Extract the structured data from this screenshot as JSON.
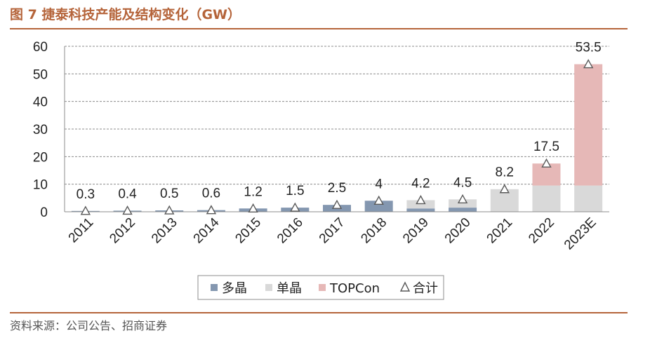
{
  "header": {
    "title": "图 7 捷泰科技产能及结构变化（GW）"
  },
  "footer": {
    "source": "资料来源：公司公告、招商证券"
  },
  "colors": {
    "duojing": "#8497b0",
    "danjing": "#d9d9d9",
    "topcon": "#e6b8b7",
    "brand": "#b5643a"
  },
  "chart_data": {
    "type": "bar",
    "stacked": true,
    "categories": [
      "2011",
      "2012",
      "2013",
      "2014",
      "2015",
      "2016",
      "2017",
      "2018",
      "2019",
      "2020",
      "2021",
      "2022",
      "2023E"
    ],
    "ylim": [
      0,
      60
    ],
    "yticks": [
      "0",
      "10",
      "20",
      "30",
      "40",
      "50",
      "60"
    ],
    "grid": true,
    "legend_position": "bottom",
    "series": [
      {
        "name": "多晶",
        "values": [
          0.3,
          0.4,
          0.5,
          0.6,
          1.2,
          1.5,
          2.5,
          4,
          1.2,
          1.5,
          0,
          0,
          0
        ]
      },
      {
        "name": "单晶",
        "values": [
          0,
          0,
          0,
          0,
          0,
          0,
          0,
          0,
          3,
          3,
          8.2,
          9.5,
          9.5
        ]
      },
      {
        "name": "TOPCon",
        "values": [
          0,
          0,
          0,
          0,
          0,
          0,
          0,
          0,
          0,
          0,
          0,
          8,
          44
        ]
      }
    ],
    "total": {
      "name": "合计",
      "values": [
        0.3,
        0.4,
        0.5,
        0.6,
        1.2,
        1.5,
        2.5,
        4,
        4.2,
        4.5,
        8.2,
        17.5,
        53.5
      ],
      "labels": [
        "0.3",
        "0.4",
        "0.5",
        "0.6",
        "1.2",
        "1.5",
        "2.5",
        "4",
        "4.2",
        "4.5",
        "8.2",
        "17.5",
        "53.5"
      ]
    }
  }
}
